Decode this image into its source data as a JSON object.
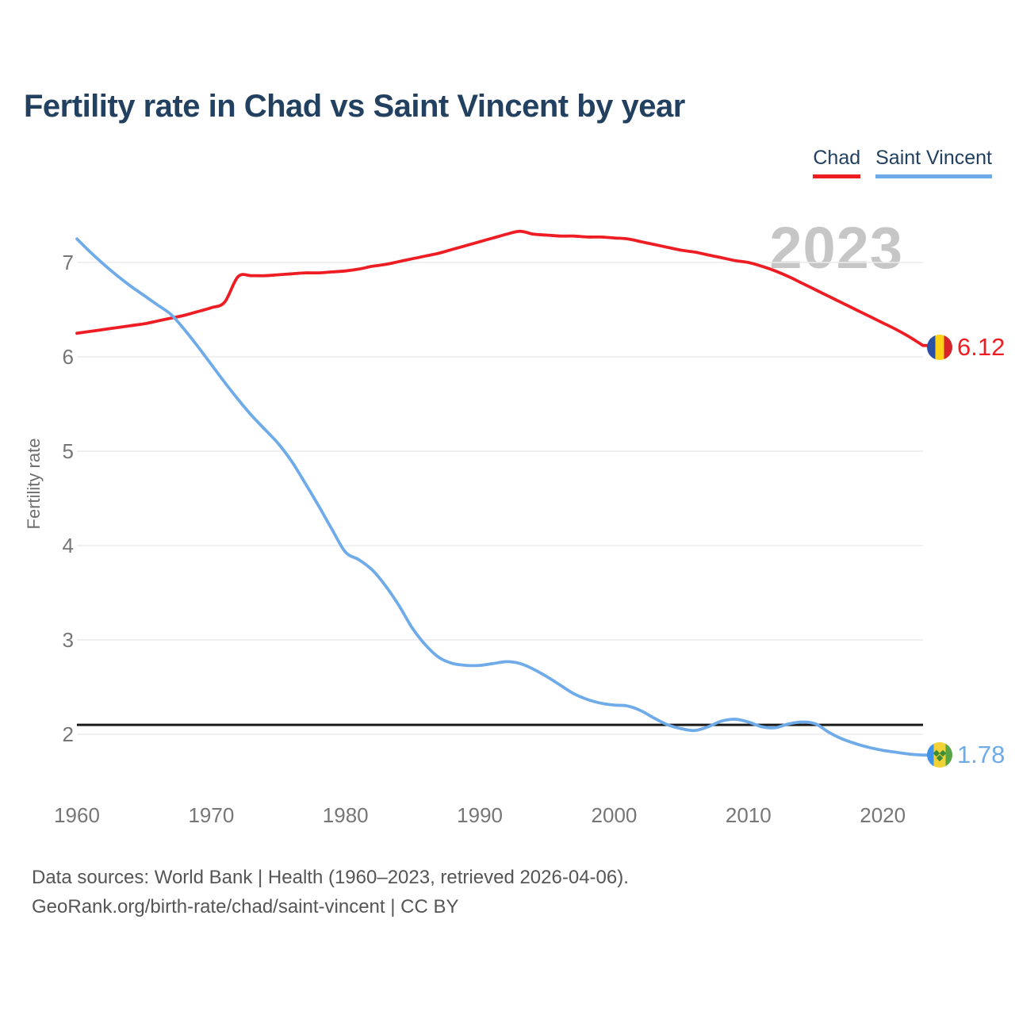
{
  "title": "Fertility rate in Chad vs Saint Vincent by year",
  "watermark": "2023",
  "legend": {
    "chad": {
      "label": "Chad",
      "color": "#ee1d23"
    },
    "saint_vincent": {
      "label": "Saint Vincent",
      "color": "#6eabe8"
    }
  },
  "y_axis": {
    "label": "Fertility rate"
  },
  "end_labels": {
    "chad": "6.12",
    "saint_vincent": "1.78"
  },
  "footer": {
    "line1": "Data sources: World Bank | Health (1960–2023, retrieved 2026-04-06).",
    "line2": "GeoRank.org/birth-rate/chad/saint-vincent | CC BY"
  },
  "chart_data": {
    "type": "line",
    "title": "Fertility rate in Chad vs Saint Vincent by year",
    "xlabel": "",
    "ylabel": "Fertility rate",
    "xlim": [
      1960,
      2023
    ],
    "ylim": [
      1.5,
      7.5
    ],
    "x_ticks": [
      1960,
      1970,
      1980,
      1990,
      2000,
      2010,
      2020
    ],
    "y_ticks": [
      7,
      6,
      5,
      4,
      3,
      2
    ],
    "grid": "horizontal",
    "legend_position": "top-right",
    "reference_line": 2.1,
    "x": [
      1960,
      1961,
      1962,
      1963,
      1964,
      1965,
      1966,
      1967,
      1968,
      1969,
      1970,
      1971,
      1972,
      1973,
      1974,
      1975,
      1976,
      1977,
      1978,
      1979,
      1980,
      1981,
      1982,
      1983,
      1984,
      1985,
      1986,
      1987,
      1988,
      1989,
      1990,
      1991,
      1992,
      1993,
      1994,
      1995,
      1996,
      1997,
      1998,
      1999,
      2000,
      2001,
      2002,
      2003,
      2004,
      2005,
      2006,
      2007,
      2008,
      2009,
      2010,
      2011,
      2012,
      2013,
      2014,
      2015,
      2016,
      2017,
      2018,
      2019,
      2020,
      2021,
      2022,
      2023
    ],
    "series": [
      {
        "name": "Chad",
        "color": "#ee1d23",
        "end_value": 6.12,
        "values": [
          6.25,
          6.27,
          6.29,
          6.31,
          6.33,
          6.35,
          6.38,
          6.41,
          6.44,
          6.48,
          6.52,
          6.58,
          6.85,
          6.86,
          6.86,
          6.87,
          6.88,
          6.89,
          6.89,
          6.9,
          6.91,
          6.93,
          6.96,
          6.98,
          7.01,
          7.04,
          7.07,
          7.1,
          7.14,
          7.18,
          7.22,
          7.26,
          7.3,
          7.33,
          7.3,
          7.29,
          7.28,
          7.28,
          7.27,
          7.27,
          7.26,
          7.25,
          7.22,
          7.19,
          7.16,
          7.13,
          7.11,
          7.08,
          7.05,
          7.02,
          7.0,
          6.96,
          6.91,
          6.85,
          6.78,
          6.71,
          6.64,
          6.57,
          6.5,
          6.43,
          6.36,
          6.29,
          6.21,
          6.12
        ]
      },
      {
        "name": "Saint Vincent",
        "color": "#6eabe8",
        "end_value": 1.78,
        "values": [
          7.25,
          7.11,
          6.98,
          6.86,
          6.75,
          6.65,
          6.55,
          6.45,
          6.29,
          6.11,
          5.92,
          5.73,
          5.55,
          5.38,
          5.23,
          5.08,
          4.89,
          4.66,
          4.42,
          4.17,
          3.93,
          3.85,
          3.74,
          3.57,
          3.36,
          3.12,
          2.94,
          2.81,
          2.75,
          2.73,
          2.73,
          2.75,
          2.77,
          2.75,
          2.69,
          2.61,
          2.52,
          2.43,
          2.37,
          2.33,
          2.31,
          2.3,
          2.25,
          2.17,
          2.1,
          2.06,
          2.04,
          2.08,
          2.14,
          2.16,
          2.13,
          2.08,
          2.07,
          2.11,
          2.13,
          2.11,
          2.02,
          1.95,
          1.9,
          1.86,
          1.83,
          1.81,
          1.79,
          1.78
        ]
      }
    ]
  }
}
